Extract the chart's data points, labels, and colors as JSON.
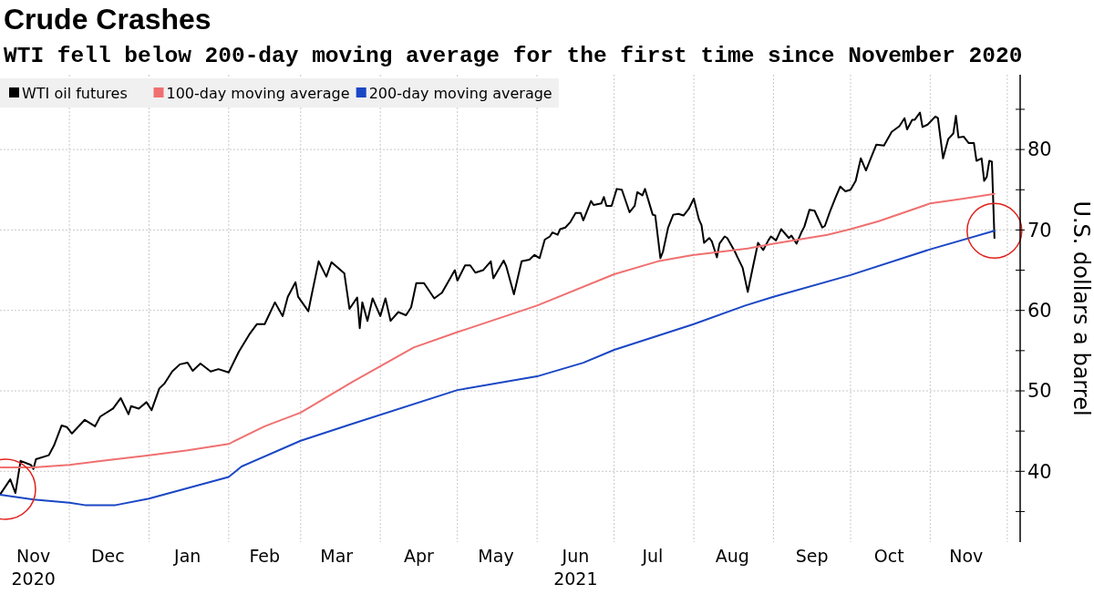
{
  "chart_data": {
    "type": "line",
    "title": "Crude Crashes",
    "subtitle": "WTI fell below 200-day moving average for the first time since November 2020",
    "ylabel": "U.S. dollars a barrel",
    "xlim": [
      "2020-11-04",
      "2021-12-06"
    ],
    "ylim": [
      31.2,
      89.3
    ],
    "xticks": [
      {
        "value": "2020-11-17",
        "label": "Nov\n2020"
      },
      {
        "value": "2020-12-01",
        "label": null
      },
      {
        "value": "2020-12-16",
        "label": "Dec"
      },
      {
        "value": "2021-01-01",
        "label": null
      },
      {
        "value": "2021-01-16",
        "label": "Jan"
      },
      {
        "value": "2021-02-01",
        "label": null
      },
      {
        "value": "2021-02-15",
        "label": "Feb"
      },
      {
        "value": "2021-03-01",
        "label": null
      },
      {
        "value": "2021-03-15",
        "label": "Mar"
      },
      {
        "value": "2021-04-01",
        "label": null
      },
      {
        "value": "2021-04-16",
        "label": "Apr"
      },
      {
        "value": "2021-05-01",
        "label": null
      },
      {
        "value": "2021-05-16",
        "label": "May"
      },
      {
        "value": "2021-06-01",
        "label": null
      },
      {
        "value": "2021-06-16",
        "label": "Jun\n2021"
      },
      {
        "value": "2021-07-01",
        "label": null
      },
      {
        "value": "2021-07-16",
        "label": "Jul"
      },
      {
        "value": "2021-08-01",
        "label": null
      },
      {
        "value": "2021-08-16",
        "label": "Aug"
      },
      {
        "value": "2021-09-01",
        "label": null
      },
      {
        "value": "2021-09-16",
        "label": "Sep"
      },
      {
        "value": "2021-10-01",
        "label": null
      },
      {
        "value": "2021-10-16",
        "label": "Oct"
      },
      {
        "value": "2021-11-01",
        "label": null
      },
      {
        "value": "2021-11-15",
        "label": "Nov"
      },
      {
        "value": "2021-12-01",
        "label": null
      }
    ],
    "yticks": [
      {
        "value": 35,
        "label": null
      },
      40,
      {
        "value": 45,
        "label": null
      },
      50,
      {
        "value": 55,
        "label": null
      },
      60,
      {
        "value": 65,
        "label": null
      },
      70,
      {
        "value": 75,
        "label": null
      },
      80,
      {
        "value": 85,
        "label": null
      }
    ],
    "grid": true,
    "legend": "top left",
    "line_style": "solid",
    "marker": "none",
    "series": [
      {
        "name": "WTI oil futures",
        "color": "#000000",
        "x": [
          "2020-11-04",
          "2020-11-08",
          "2020-11-10",
          "2020-11-12",
          "2020-11-16",
          "2020-11-17",
          "2020-11-18",
          "2020-11-23",
          "2020-11-25",
          "2020-11-28",
          "2020-11-30",
          "2020-12-02",
          "2020-12-07",
          "2020-12-11",
          "2020-12-13",
          "2020-12-18",
          "2020-12-21",
          "2020-12-24",
          "2020-12-25",
          "2020-12-28",
          "2020-12-31",
          "2021-01-02",
          "2021-01-05",
          "2021-01-07",
          "2021-01-10",
          "2021-01-13",
          "2021-01-16",
          "2021-01-18",
          "2021-01-21",
          "2021-01-25",
          "2021-01-28",
          "2021-02-01",
          "2021-02-05",
          "2021-02-09",
          "2021-02-12",
          "2021-02-15",
          "2021-02-19",
          "2021-02-22",
          "2021-02-24",
          "2021-02-27",
          "2021-02-28",
          "2021-03-04",
          "2021-03-05",
          "2021-03-08",
          "2021-03-11",
          "2021-03-13",
          "2021-03-18",
          "2021-03-20",
          "2021-03-23",
          "2021-03-24",
          "2021-03-25",
          "2021-03-27",
          "2021-03-29",
          "2021-04-01",
          "2021-04-03",
          "2021-04-05",
          "2021-04-08",
          "2021-04-11",
          "2021-04-13",
          "2021-04-15",
          "2021-04-18",
          "2021-04-22",
          "2021-04-25",
          "2021-04-30",
          "2021-05-01",
          "2021-05-04",
          "2021-05-06",
          "2021-05-08",
          "2021-05-11",
          "2021-05-14",
          "2021-05-15",
          "2021-05-19",
          "2021-05-20",
          "2021-05-23",
          "2021-05-26",
          "2021-05-29",
          "2021-05-31",
          "2021-06-02",
          "2021-06-04",
          "2021-06-06",
          "2021-06-07",
          "2021-06-09",
          "2021-06-10",
          "2021-06-12",
          "2021-06-14",
          "2021-06-16",
          "2021-06-18",
          "2021-06-19",
          "2021-06-22",
          "2021-06-23",
          "2021-06-26",
          "2021-06-27",
          "2021-06-28",
          "2021-06-30",
          "2021-07-02",
          "2021-07-04",
          "2021-07-07",
          "2021-07-09",
          "2021-07-10",
          "2021-07-12",
          "2021-07-13",
          "2021-07-16",
          "2021-07-17",
          "2021-07-19",
          "2021-07-20",
          "2021-07-22",
          "2021-07-24",
          "2021-07-26",
          "2021-07-28",
          "2021-07-30",
          "2021-08-01",
          "2021-08-03",
          "2021-08-04",
          "2021-08-05",
          "2021-08-07",
          "2021-08-08",
          "2021-08-10",
          "2021-08-11",
          "2021-08-13",
          "2021-08-14",
          "2021-08-17",
          "2021-08-18",
          "2021-08-20",
          "2021-08-22",
          "2021-08-24",
          "2021-08-26",
          "2021-08-28",
          "2021-08-30",
          "2021-08-31",
          "2021-09-02",
          "2021-09-04",
          "2021-09-07",
          "2021-09-08",
          "2021-09-10",
          "2021-09-12",
          "2021-09-13",
          "2021-09-15",
          "2021-09-17",
          "2021-09-20",
          "2021-09-21",
          "2021-09-23",
          "2021-09-25",
          "2021-09-27",
          "2021-09-29",
          "2021-10-01",
          "2021-10-03",
          "2021-10-05",
          "2021-10-07",
          "2021-10-09",
          "2021-10-11",
          "2021-10-14",
          "2021-10-17",
          "2021-10-20",
          "2021-10-22",
          "2021-10-23",
          "2021-10-25",
          "2021-10-26",
          "2021-10-28",
          "2021-10-29",
          "2021-10-31",
          "2021-11-03",
          "2021-11-04",
          "2021-11-06",
          "2021-11-08",
          "2021-11-10",
          "2021-11-11",
          "2021-11-12",
          "2021-11-14",
          "2021-11-16",
          "2021-11-18",
          "2021-11-19",
          "2021-11-21",
          "2021-11-22",
          "2021-11-23",
          "2021-11-24",
          "2021-11-25",
          "2021-11-26"
        ],
        "values": [
          37.1,
          39.0,
          37.3,
          41.3,
          40.8,
          40.3,
          41.5,
          42.0,
          43.2,
          45.7,
          45.5,
          44.7,
          46.4,
          45.6,
          46.8,
          47.8,
          49.1,
          47.1,
          48.1,
          47.8,
          48.6,
          47.6,
          50.3,
          50.9,
          52.4,
          53.3,
          53.5,
          52.5,
          53.4,
          52.4,
          52.7,
          52.3,
          54.9,
          57.0,
          58.3,
          58.3,
          61.0,
          59.3,
          61.7,
          63.5,
          61.7,
          59.9,
          61.5,
          66.1,
          64.2,
          66.0,
          64.6,
          60.2,
          61.6,
          57.8,
          61.0,
          58.7,
          61.5,
          59.3,
          61.5,
          58.7,
          59.8,
          59.4,
          60.4,
          63.4,
          63.4,
          61.5,
          62.2,
          65.0,
          63.7,
          65.6,
          65.6,
          64.7,
          65.0,
          66.1,
          64.0,
          66.2,
          65.5,
          62.0,
          66.1,
          66.3,
          66.9,
          66.5,
          68.8,
          69.2,
          69.7,
          69.4,
          70.1,
          70.3,
          71.0,
          72.1,
          72.1,
          71.2,
          73.6,
          73.1,
          73.3,
          74.1,
          73.0,
          73.0,
          75.1,
          75.0,
          72.2,
          73.0,
          74.7,
          74.3,
          75.1,
          71.9,
          71.8,
          66.5,
          67.3,
          70.3,
          71.9,
          72.0,
          71.8,
          72.6,
          73.9,
          71.3,
          70.6,
          68.4,
          69.0,
          68.6,
          66.6,
          68.3,
          69.2,
          69.0,
          67.3,
          66.6,
          65.3,
          62.3,
          65.4,
          68.4,
          67.5,
          68.7,
          69.2,
          68.7,
          70.1,
          69.0,
          69.3,
          68.3,
          69.8,
          70.4,
          72.5,
          72.4,
          70.3,
          70.5,
          72.3,
          73.9,
          75.4,
          74.8,
          75.0,
          76.1,
          78.9,
          77.4,
          79.0,
          80.6,
          80.5,
          82.2,
          82.9,
          83.9,
          82.5,
          83.7,
          83.7,
          84.6,
          82.8,
          83.1,
          84.1,
          83.9,
          78.9,
          81.3,
          82.0,
          84.2,
          81.5,
          81.6,
          80.8,
          80.8,
          78.6,
          78.9,
          76.1,
          76.6,
          78.6,
          78.5,
          69.0
        ]
      },
      {
        "name": "100-day moving average",
        "color": "#f07070",
        "x": [
          "2020-11-04",
          "2020-11-17",
          "2020-12-01",
          "2020-12-16",
          "2021-01-01",
          "2021-01-16",
          "2021-02-01",
          "2021-02-15",
          "2021-03-01",
          "2021-03-21",
          "2021-04-14",
          "2021-05-01",
          "2021-06-01",
          "2021-07-01",
          "2021-07-18",
          "2021-08-01",
          "2021-08-22",
          "2021-09-01",
          "2021-09-22",
          "2021-10-01",
          "2021-10-12",
          "2021-11-01",
          "2021-11-14",
          "2021-11-26"
        ],
        "values": [
          40.5,
          40.5,
          40.8,
          41.4,
          42.0,
          42.6,
          43.4,
          45.6,
          47.3,
          51.1,
          55.4,
          57.3,
          60.6,
          64.5,
          66.1,
          66.9,
          67.7,
          68.3,
          69.4,
          70.1,
          71.1,
          73.3,
          73.9,
          74.5
        ]
      },
      {
        "name": "200-day moving average",
        "color": "#1a47c4",
        "x": [
          "2020-11-04",
          "2020-11-17",
          "2020-12-01",
          "2020-12-07",
          "2020-12-19",
          "2021-01-01",
          "2021-02-01",
          "2021-02-06",
          "2021-03-01",
          "2021-03-21",
          "2021-05-01",
          "2021-06-01",
          "2021-06-19",
          "2021-07-01",
          "2021-08-01",
          "2021-08-21",
          "2021-09-01",
          "2021-10-01",
          "2021-11-01",
          "2021-11-26"
        ],
        "values": [
          37.1,
          36.5,
          36.1,
          35.8,
          35.8,
          36.6,
          39.3,
          40.6,
          43.8,
          45.9,
          50.1,
          51.8,
          53.5,
          55.1,
          58.3,
          60.6,
          61.7,
          64.4,
          67.6,
          69.9
        ]
      }
    ]
  }
}
